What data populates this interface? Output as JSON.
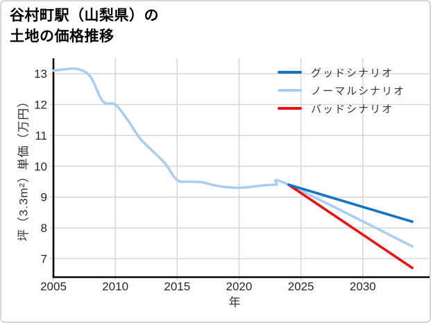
{
  "header": {
    "title_line1": "谷村町駅（山梨県）の",
    "title_line2": "土地の価格推移"
  },
  "chart_data": {
    "type": "line",
    "title": "谷村町駅（山梨県）の土地の価格推移",
    "xlabel": "年",
    "ylabel": "坪（3.3m²）単価（万円）",
    "xlim": [
      2005,
      2035.4
    ],
    "ylim": [
      6.4,
      13.5
    ],
    "x_ticks": [
      2005,
      2010,
      2015,
      2020,
      2025,
      2030
    ],
    "y_ticks": [
      7,
      8,
      9,
      10,
      11,
      12,
      13
    ],
    "grid": true,
    "legend_position": "top-right",
    "colors": {
      "grid": "#d8d8d8",
      "axis": "#000000",
      "tick_label": "#262626"
    },
    "series": [
      {
        "name": "グッドシナリオ",
        "key": "good-scenario",
        "color": "#1274c5",
        "x": [
          2024,
          2034
        ],
        "values": [
          9.4,
          8.2
        ]
      },
      {
        "name": "ノーマルシナリオ",
        "key": "normal-scenario",
        "color": "#a9cef2",
        "x": [
          2005,
          2006,
          2007,
          2008,
          2009,
          2010,
          2011,
          2012,
          2013,
          2014,
          2015,
          2016,
          2017,
          2018,
          2019,
          2020,
          2021,
          2022,
          2023,
          2024,
          2034
        ],
        "values": [
          13.1,
          13.15,
          13.15,
          12.9,
          12.1,
          12.0,
          11.5,
          10.9,
          10.5,
          10.1,
          9.55,
          9.5,
          9.48,
          9.38,
          9.32,
          9.3,
          9.33,
          9.38,
          9.4,
          9.4,
          7.4
        ]
      },
      {
        "name": "バッドシナリオ",
        "key": "bad-scenario",
        "color": "#ee1111",
        "x": [
          2024,
          2034
        ],
        "values": [
          9.4,
          6.7
        ]
      }
    ]
  }
}
